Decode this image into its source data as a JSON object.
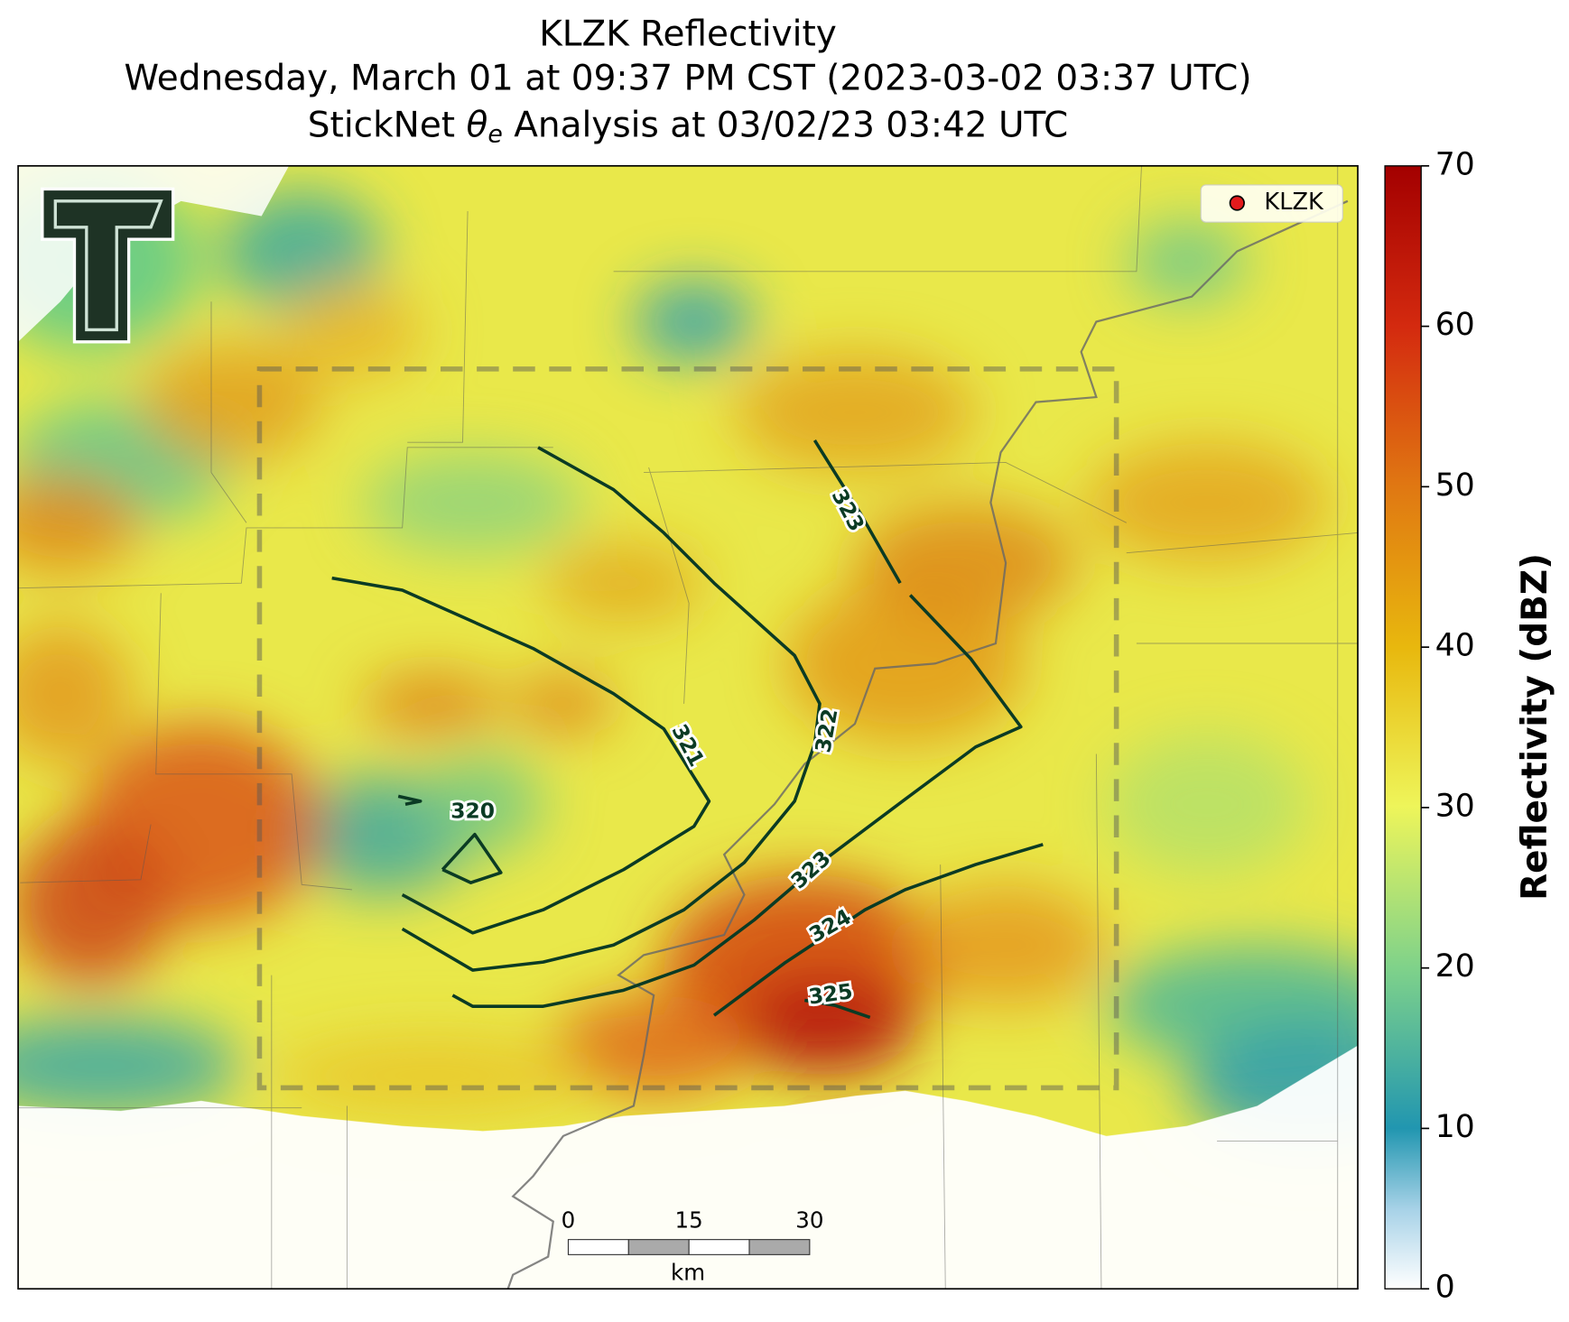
{
  "title": {
    "lines": [
      "KLZK Reflectivity",
      "Wednesday, March 01 at 09:37 PM CST (2023-03-02 03:37 UTC)"
    ],
    "analysis": {
      "pre": "StickNet ",
      "symbol": "θ",
      "sub": "e",
      "post": " Analysis at 03/02/23 03:42 UTC"
    }
  },
  "legend": {
    "label": "KLZK",
    "color": "#e31a1c"
  },
  "colorbar": {
    "label": "Reflectivity (dBZ)",
    "lim": [
      0,
      70
    ],
    "ticks": [
      0,
      10,
      20,
      30,
      40,
      50,
      60,
      70
    ]
  },
  "contours": [
    {
      "level": 320
    },
    {
      "level": 321
    },
    {
      "level": 322
    },
    {
      "level": 323
    },
    {
      "level": 323
    },
    {
      "level": 324
    },
    {
      "level": 325
    }
  ],
  "scalebar": {
    "ticks": [
      0,
      15,
      30
    ],
    "unit": "km"
  }
}
